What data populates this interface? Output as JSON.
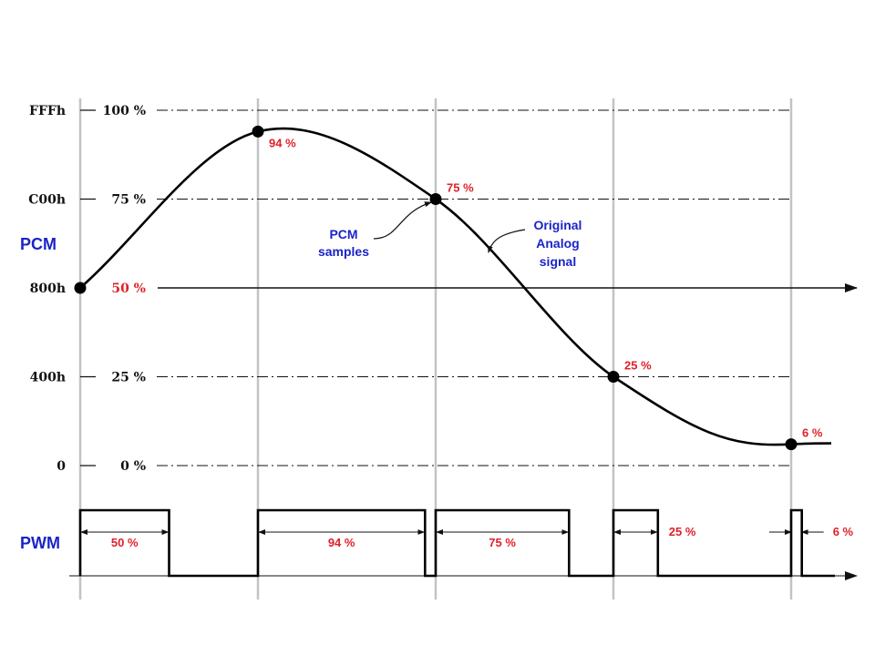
{
  "signals": {
    "pcm_label": "PCM",
    "pwm_label": "PWM"
  },
  "levels": [
    {
      "hex": "FFFh",
      "percent": "100 %",
      "fraction": 1.0,
      "highlight": false
    },
    {
      "hex": "C00h",
      "percent": "75 %",
      "fraction": 0.75,
      "highlight": false
    },
    {
      "hex": "800h",
      "percent": "50 %",
      "fraction": 0.5,
      "highlight": true
    },
    {
      "hex": "400h",
      "percent": "25 %",
      "fraction": 0.25,
      "highlight": false
    },
    {
      "hex": "0",
      "percent": "0 %",
      "fraction": 0.0,
      "highlight": false
    }
  ],
  "samples": [
    {
      "label": "",
      "fraction": 0.5
    },
    {
      "label": "94 %",
      "fraction": 0.94
    },
    {
      "label": "75 %",
      "fraction": 0.75
    },
    {
      "label": "25 %",
      "fraction": 0.25
    },
    {
      "label": "6 %",
      "fraction": 0.06
    }
  ],
  "annotations": {
    "pcm_samples_line1": "PCM",
    "pcm_samples_line2": "samples",
    "analog_line1": "Original",
    "analog_line2": "Analog",
    "analog_line3": "signal"
  },
  "pwm": {
    "duty_cycles": [
      {
        "label": "50 %",
        "fraction": 0.5
      },
      {
        "label": "94 %",
        "fraction": 0.94
      },
      {
        "label": "75 %",
        "fraction": 0.75
      },
      {
        "label": "25 %",
        "fraction": 0.25
      },
      {
        "label": "6 %",
        "fraction": 0.06
      }
    ]
  },
  "colors": {
    "accent_blue": "#1a24c8",
    "accent_red": "#e0202a",
    "guide_gray": "#c3c3c3"
  }
}
